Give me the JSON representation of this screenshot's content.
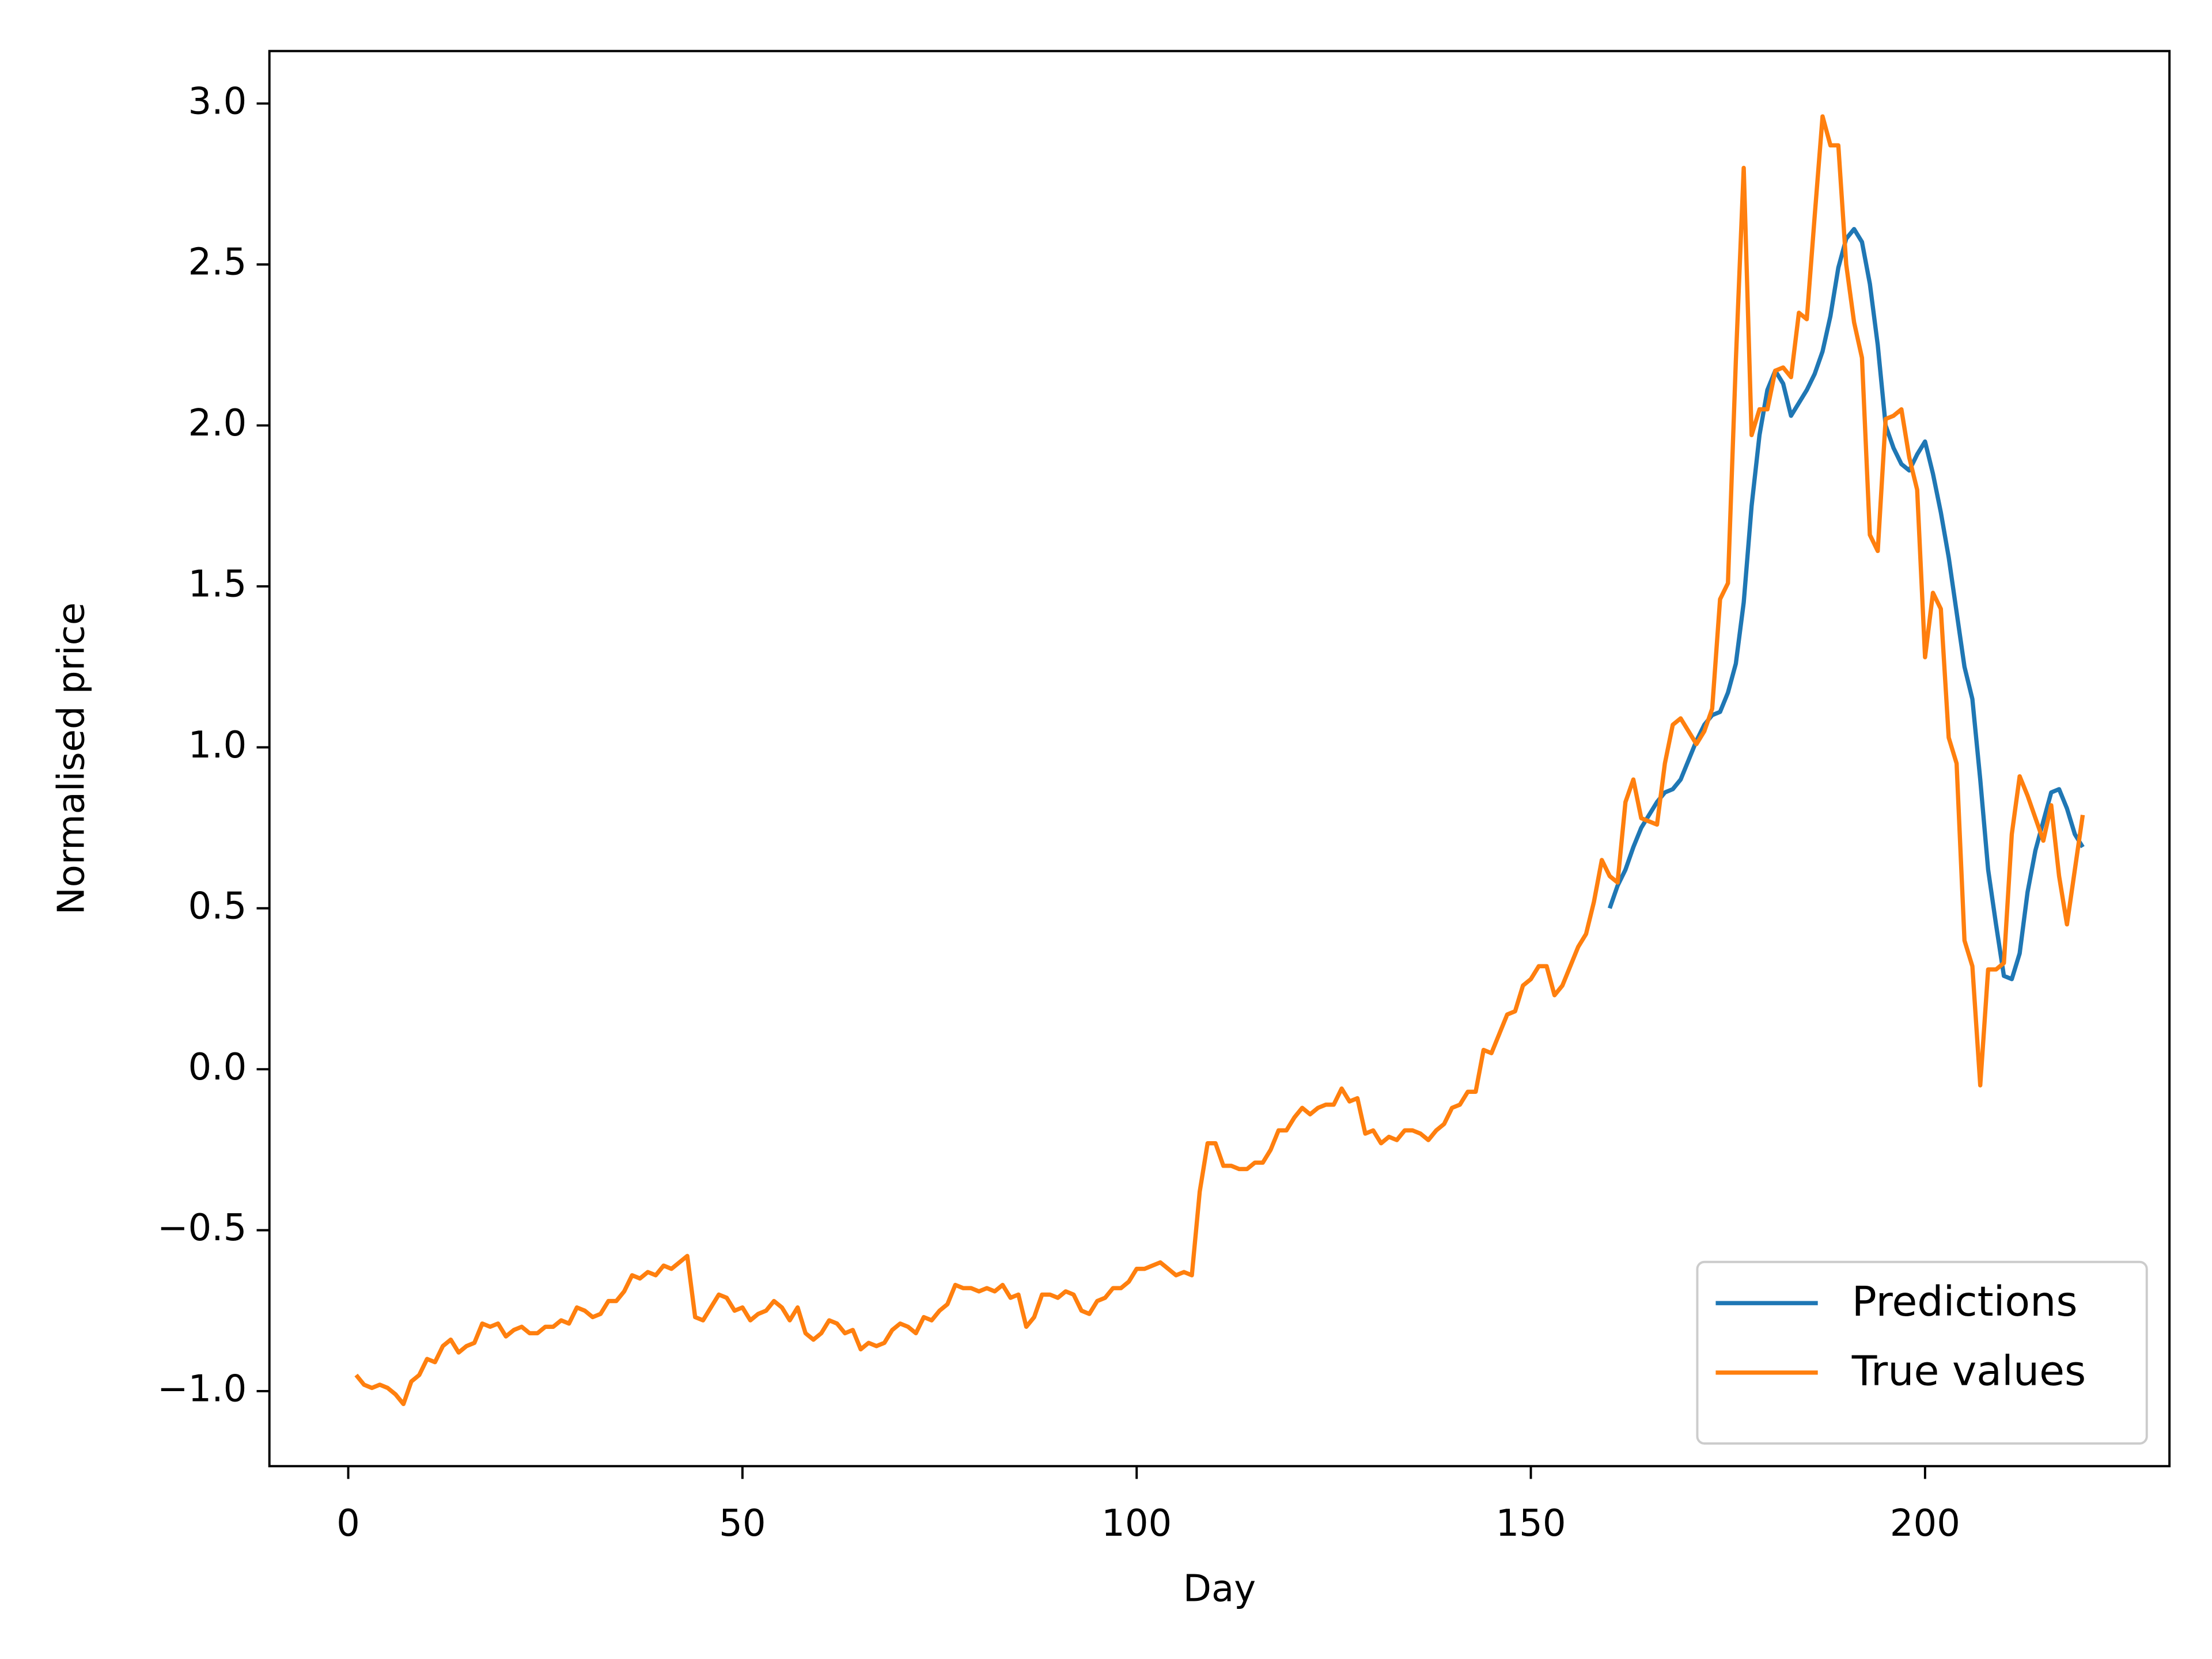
{
  "chart_data": {
    "type": "line",
    "xlabel": "Day",
    "ylabel": "Normalised price",
    "xlim": [
      -10,
      231
    ],
    "ylim": [
      -1.233,
      3.163
    ],
    "xticks": [
      0,
      50,
      100,
      150,
      200
    ],
    "yticks": [
      {
        "value": -1.0,
        "label": "−1.0"
      },
      {
        "value": -0.5,
        "label": "−0.5"
      },
      {
        "value": 0.0,
        "label": "0.0"
      },
      0.5,
      {
        "value": 1.0,
        "label": "1.0"
      },
      1.5,
      {
        "value": 2.0,
        "label": "2.0"
      },
      2.5,
      {
        "value": 3.0,
        "label": "3.0"
      }
    ],
    "legend": "lower right",
    "series": [
      {
        "name": "Predictions",
        "color": "#1f77b4",
        "x": [
          160,
          161,
          162,
          163,
          164,
          165,
          166,
          167,
          168,
          169,
          170,
          171,
          172,
          173,
          174,
          175,
          176,
          177,
          178,
          179,
          180,
          181,
          182,
          183,
          184,
          185,
          186,
          187,
          188,
          189,
          190,
          191,
          192,
          193,
          194,
          195,
          196,
          197,
          198,
          199,
          200,
          201,
          202,
          203,
          204,
          205,
          206,
          207,
          208,
          209,
          210,
          211,
          212,
          213,
          214,
          215,
          216,
          217,
          218,
          219,
          220
        ],
        "values": [
          0.5,
          0.57,
          0.62,
          0.69,
          0.75,
          0.79,
          0.83,
          0.86,
          0.87,
          0.9,
          0.96,
          1.02,
          1.07,
          1.1,
          1.11,
          1.17,
          1.26,
          1.45,
          1.75,
          1.97,
          2.11,
          2.17,
          2.13,
          2.03,
          2.07,
          2.11,
          2.16,
          2.23,
          2.34,
          2.49,
          2.58,
          2.61,
          2.57,
          2.44,
          2.25,
          2.0,
          1.93,
          1.88,
          1.86,
          1.91,
          1.95,
          1.85,
          1.73,
          1.59,
          1.42,
          1.25,
          1.15,
          0.9,
          0.62,
          0.45,
          0.29,
          0.28,
          0.36,
          0.55,
          0.68,
          0.77,
          0.86,
          0.87,
          0.81,
          0.73,
          0.69
        ]
      },
      {
        "name": "True values",
        "color": "#ff7f0e",
        "x": [
          1,
          2,
          3,
          4,
          5,
          6,
          7,
          8,
          9,
          10,
          11,
          12,
          13,
          14,
          15,
          16,
          17,
          18,
          19,
          20,
          21,
          22,
          23,
          24,
          25,
          26,
          27,
          28,
          29,
          30,
          31,
          32,
          33,
          34,
          35,
          36,
          37,
          38,
          39,
          40,
          41,
          42,
          43,
          44,
          45,
          46,
          47,
          48,
          49,
          50,
          51,
          52,
          53,
          54,
          55,
          56,
          57,
          58,
          59,
          60,
          61,
          62,
          63,
          64,
          65,
          66,
          67,
          68,
          69,
          70,
          71,
          72,
          73,
          74,
          75,
          76,
          77,
          78,
          79,
          80,
          81,
          82,
          83,
          84,
          85,
          86,
          87,
          88,
          89,
          90,
          91,
          92,
          93,
          94,
          95,
          96,
          97,
          98,
          99,
          100,
          101,
          102,
          103,
          104,
          105,
          106,
          107,
          108,
          109,
          110,
          111,
          112,
          113,
          114,
          115,
          116,
          117,
          118,
          119,
          120,
          121,
          122,
          123,
          124,
          125,
          126,
          127,
          128,
          129,
          130,
          131,
          132,
          133,
          134,
          135,
          136,
          137,
          138,
          139,
          140,
          141,
          142,
          143,
          144,
          145,
          146,
          147,
          148,
          149,
          150,
          151,
          152,
          153,
          154,
          155,
          156,
          157,
          158,
          159,
          160,
          161,
          162,
          163,
          164,
          165,
          166,
          167,
          168,
          169,
          170,
          171,
          172,
          173,
          174,
          175,
          176,
          177,
          178,
          179,
          180,
          181,
          182,
          183,
          184,
          185,
          186,
          187,
          188,
          189,
          190,
          191,
          192,
          193,
          194,
          195,
          196,
          197,
          198,
          199,
          200,
          201,
          202,
          203,
          204,
          205,
          206,
          207,
          208,
          209,
          210,
          211,
          212,
          213,
          214,
          215,
          216,
          217,
          218,
          219,
          220
        ],
        "values": [
          -0.95,
          -0.98,
          -0.99,
          -0.98,
          -0.99,
          -1.01,
          -1.04,
          -0.97,
          -0.95,
          -0.9,
          -0.91,
          -0.86,
          -0.84,
          -0.88,
          -0.86,
          -0.85,
          -0.79,
          -0.8,
          -0.79,
          -0.83,
          -0.81,
          -0.8,
          -0.82,
          -0.82,
          -0.8,
          -0.8,
          -0.78,
          -0.79,
          -0.74,
          -0.75,
          -0.77,
          -0.76,
          -0.72,
          -0.72,
          -0.69,
          -0.64,
          -0.65,
          -0.63,
          -0.64,
          -0.61,
          -0.62,
          -0.6,
          -0.58,
          -0.77,
          -0.78,
          -0.74,
          -0.7,
          -0.71,
          -0.75,
          -0.74,
          -0.78,
          -0.76,
          -0.75,
          -0.72,
          -0.74,
          -0.78,
          -0.74,
          -0.82,
          -0.84,
          -0.82,
          -0.78,
          -0.79,
          -0.82,
          -0.81,
          -0.87,
          -0.85,
          -0.86,
          -0.85,
          -0.81,
          -0.79,
          -0.8,
          -0.82,
          -0.77,
          -0.78,
          -0.75,
          -0.73,
          -0.67,
          -0.68,
          -0.68,
          -0.69,
          -0.68,
          -0.69,
          -0.67,
          -0.71,
          -0.7,
          -0.8,
          -0.77,
          -0.7,
          -0.7,
          -0.71,
          -0.69,
          -0.7,
          -0.75,
          -0.76,
          -0.72,
          -0.71,
          -0.68,
          -0.68,
          -0.66,
          -0.62,
          -0.62,
          -0.61,
          -0.6,
          -0.62,
          -0.64,
          -0.63,
          -0.64,
          -0.38,
          -0.23,
          -0.23,
          -0.3,
          -0.3,
          -0.31,
          -0.31,
          -0.29,
          -0.29,
          -0.25,
          -0.19,
          -0.19,
          -0.15,
          -0.12,
          -0.14,
          -0.12,
          -0.11,
          -0.11,
          -0.06,
          -0.1,
          -0.09,
          -0.2,
          -0.19,
          -0.23,
          -0.21,
          -0.22,
          -0.19,
          -0.19,
          -0.2,
          -0.22,
          -0.19,
          -0.17,
          -0.12,
          -0.11,
          -0.07,
          -0.07,
          0.06,
          0.05,
          0.11,
          0.17,
          0.18,
          0.26,
          0.28,
          0.32,
          0.32,
          0.23,
          0.26,
          0.32,
          0.38,
          0.42,
          0.52,
          0.65,
          0.6,
          0.58,
          0.83,
          0.9,
          0.78,
          0.77,
          0.76,
          0.95,
          1.07,
          1.09,
          1.05,
          1.01,
          1.05,
          1.12,
          1.46,
          1.51,
          2.2,
          2.8,
          1.97,
          2.05,
          2.05,
          2.17,
          2.18,
          2.15,
          2.35,
          2.33,
          2.65,
          2.96,
          2.87,
          2.87,
          2.5,
          2.32,
          2.21,
          1.66,
          1.61,
          2.02,
          2.03,
          2.05,
          1.9,
          1.8,
          1.28,
          1.48,
          1.43,
          1.03,
          0.95,
          0.4,
          0.32,
          -0.05,
          0.31,
          0.31,
          0.33,
          0.73,
          0.91,
          0.85,
          0.78,
          0.71,
          0.82,
          0.6,
          0.45,
          0.62,
          0.79
        ]
      }
    ]
  }
}
